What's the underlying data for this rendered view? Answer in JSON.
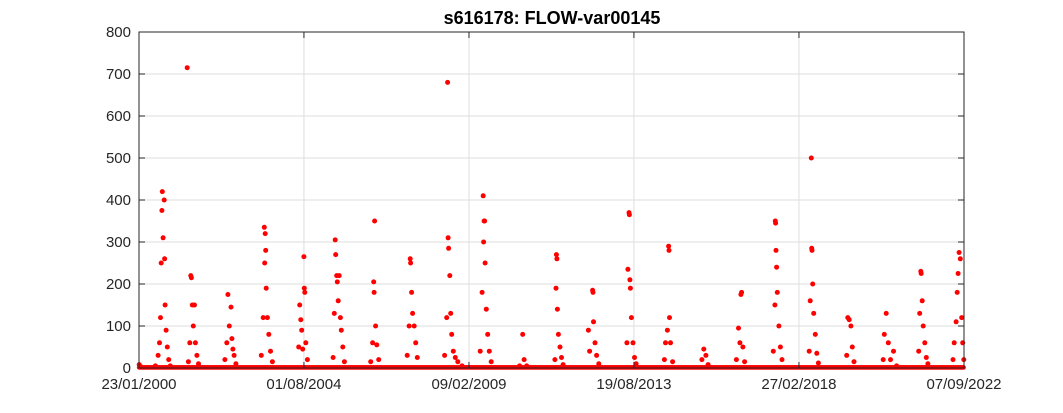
{
  "chart_data": {
    "type": "scatter",
    "title": "s616178: FLOW-var00145",
    "xlabel": "",
    "ylabel": "",
    "x_axis": {
      "type": "date",
      "min": "2000-01-23",
      "max": "2022-09-07"
    },
    "ylim": [
      0,
      800
    ],
    "yticks": [
      0,
      100,
      200,
      300,
      400,
      500,
      600,
      700,
      800
    ],
    "xticks": [
      {
        "date": "2000-01-23",
        "label": "23/01/2000"
      },
      {
        "date": "2004-08-01",
        "label": "01/08/2004"
      },
      {
        "date": "2009-02-09",
        "label": "09/02/2009"
      },
      {
        "date": "2013-08-19",
        "label": "19/08/2013"
      },
      {
        "date": "2018-02-27",
        "label": "27/02/2018"
      },
      {
        "date": "2022-09-07",
        "label": "07/09/2022"
      }
    ],
    "grid": true,
    "marker_color": "#ff0000",
    "series": [
      {
        "points": [
          [
            "2000-01-25",
            8
          ],
          [
            "2000-02-10",
            3
          ],
          [
            "2000-07-05",
            5
          ],
          [
            "2000-08-01",
            30
          ],
          [
            "2000-08-15",
            60
          ],
          [
            "2000-08-25",
            120
          ],
          [
            "2000-09-01",
            250
          ],
          [
            "2000-09-08",
            375
          ],
          [
            "2000-09-12",
            420
          ],
          [
            "2000-09-20",
            310
          ],
          [
            "2000-10-01",
            400
          ],
          [
            "2000-10-05",
            260
          ],
          [
            "2000-10-10",
            150
          ],
          [
            "2000-10-20",
            90
          ],
          [
            "2000-11-01",
            50
          ],
          [
            "2000-11-15",
            20
          ],
          [
            "2000-12-01",
            5
          ],
          [
            "2001-05-20",
            715
          ],
          [
            "2001-06-01",
            15
          ],
          [
            "2001-06-15",
            60
          ],
          [
            "2001-06-25",
            220
          ],
          [
            "2001-07-01",
            215
          ],
          [
            "2001-07-10",
            150
          ],
          [
            "2001-07-20",
            100
          ],
          [
            "2001-08-01",
            150
          ],
          [
            "2001-08-10",
            60
          ],
          [
            "2001-08-25",
            30
          ],
          [
            "2001-09-10",
            10
          ],
          [
            "2002-06-01",
            20
          ],
          [
            "2002-06-20",
            60
          ],
          [
            "2002-07-01",
            175
          ],
          [
            "2002-07-15",
            100
          ],
          [
            "2002-08-01",
            145
          ],
          [
            "2002-08-10",
            70
          ],
          [
            "2002-08-20",
            45
          ],
          [
            "2002-09-01",
            30
          ],
          [
            "2002-09-20",
            10
          ],
          [
            "2003-06-01",
            30
          ],
          [
            "2003-06-20",
            120
          ],
          [
            "2003-07-01",
            335
          ],
          [
            "2003-07-05",
            250
          ],
          [
            "2003-07-10",
            320
          ],
          [
            "2003-07-15",
            280
          ],
          [
            "2003-07-20",
            190
          ],
          [
            "2003-08-01",
            120
          ],
          [
            "2003-08-15",
            80
          ],
          [
            "2003-09-01",
            40
          ],
          [
            "2003-09-20",
            15
          ],
          [
            "2004-06-10",
            50
          ],
          [
            "2004-06-20",
            150
          ],
          [
            "2004-07-01",
            115
          ],
          [
            "2004-07-10",
            90
          ],
          [
            "2004-07-20",
            45
          ],
          [
            "2004-08-01",
            265
          ],
          [
            "2004-08-05",
            190
          ],
          [
            "2004-08-10",
            180
          ],
          [
            "2004-08-20",
            60
          ],
          [
            "2004-09-05",
            20
          ],
          [
            "2005-05-20",
            25
          ],
          [
            "2005-06-01",
            130
          ],
          [
            "2005-06-10",
            305
          ],
          [
            "2005-06-15",
            270
          ],
          [
            "2005-06-25",
            220
          ],
          [
            "2005-07-01",
            205
          ],
          [
            "2005-07-10",
            160
          ],
          [
            "2005-07-20",
            220
          ],
          [
            "2005-08-01",
            120
          ],
          [
            "2005-08-10",
            90
          ],
          [
            "2005-08-25",
            50
          ],
          [
            "2005-09-10",
            15
          ],
          [
            "2006-06-01",
            15
          ],
          [
            "2006-06-20",
            60
          ],
          [
            "2006-07-01",
            205
          ],
          [
            "2006-07-05",
            180
          ],
          [
            "2006-07-10",
            350
          ],
          [
            "2006-07-20",
            100
          ],
          [
            "2006-08-01",
            55
          ],
          [
            "2006-08-20",
            20
          ],
          [
            "2007-06-01",
            30
          ],
          [
            "2007-06-20",
            100
          ],
          [
            "2007-07-01",
            260
          ],
          [
            "2007-07-05",
            250
          ],
          [
            "2007-07-15",
            180
          ],
          [
            "2007-07-25",
            130
          ],
          [
            "2007-08-10",
            100
          ],
          [
            "2007-08-25",
            60
          ],
          [
            "2007-09-10",
            25
          ],
          [
            "2008-06-10",
            30
          ],
          [
            "2008-07-01",
            120
          ],
          [
            "2008-07-10",
            680
          ],
          [
            "2008-07-15",
            310
          ],
          [
            "2008-07-20",
            285
          ],
          [
            "2008-08-01",
            220
          ],
          [
            "2008-08-10",
            130
          ],
          [
            "2008-08-20",
            80
          ],
          [
            "2008-09-05",
            40
          ],
          [
            "2008-09-25",
            25
          ],
          [
            "2008-10-20",
            15
          ],
          [
            "2008-12-01",
            5
          ],
          [
            "2009-06-01",
            40
          ],
          [
            "2009-06-20",
            180
          ],
          [
            "2009-07-01",
            410
          ],
          [
            "2009-07-05",
            300
          ],
          [
            "2009-07-10",
            350
          ],
          [
            "2009-07-15",
            350
          ],
          [
            "2009-07-20",
            250
          ],
          [
            "2009-08-01",
            140
          ],
          [
            "2009-08-15",
            80
          ],
          [
            "2009-09-01",
            40
          ],
          [
            "2009-09-20",
            15
          ],
          [
            "2010-07-01",
            5
          ],
          [
            "2010-08-01",
            80
          ],
          [
            "2010-08-15",
            20
          ],
          [
            "2010-09-10",
            5
          ],
          [
            "2011-06-20",
            20
          ],
          [
            "2011-07-01",
            190
          ],
          [
            "2011-07-05",
            270
          ],
          [
            "2011-07-10",
            260
          ],
          [
            "2011-07-15",
            140
          ],
          [
            "2011-07-25",
            80
          ],
          [
            "2011-08-10",
            50
          ],
          [
            "2011-08-25",
            25
          ],
          [
            "2011-09-10",
            8
          ],
          [
            "2012-05-20",
            90
          ],
          [
            "2012-06-01",
            40
          ],
          [
            "2012-07-01",
            185
          ],
          [
            "2012-07-05",
            180
          ],
          [
            "2012-07-10",
            110
          ],
          [
            "2012-07-25",
            60
          ],
          [
            "2012-08-10",
            30
          ],
          [
            "2012-09-01",
            10
          ],
          [
            "2013-06-10",
            60
          ],
          [
            "2013-06-20",
            235
          ],
          [
            "2013-07-01",
            370
          ],
          [
            "2013-07-05",
            365
          ],
          [
            "2013-07-10",
            210
          ],
          [
            "2013-07-15",
            190
          ],
          [
            "2013-07-25",
            120
          ],
          [
            "2013-08-10",
            60
          ],
          [
            "2013-08-25",
            25
          ],
          [
            "2013-09-10",
            10
          ],
          [
            "2014-06-20",
            20
          ],
          [
            "2014-07-01",
            60
          ],
          [
            "2014-07-20",
            90
          ],
          [
            "2014-08-01",
            290
          ],
          [
            "2014-08-05",
            280
          ],
          [
            "2014-08-10",
            120
          ],
          [
            "2014-08-20",
            60
          ],
          [
            "2014-09-10",
            15
          ],
          [
            "2015-07-01",
            20
          ],
          [
            "2015-07-20",
            45
          ],
          [
            "2015-08-10",
            30
          ],
          [
            "2015-09-01",
            8
          ],
          [
            "2016-06-10",
            20
          ],
          [
            "2016-07-01",
            95
          ],
          [
            "2016-07-15",
            60
          ],
          [
            "2016-07-25",
            175
          ],
          [
            "2016-08-01",
            180
          ],
          [
            "2016-08-15",
            50
          ],
          [
            "2016-09-01",
            15
          ],
          [
            "2017-06-15",
            40
          ],
          [
            "2017-07-01",
            150
          ],
          [
            "2017-07-05",
            350
          ],
          [
            "2017-07-08",
            345
          ],
          [
            "2017-07-12",
            280
          ],
          [
            "2017-07-18",
            240
          ],
          [
            "2017-07-25",
            180
          ],
          [
            "2017-08-10",
            100
          ],
          [
            "2017-08-25",
            50
          ],
          [
            "2017-09-10",
            20
          ],
          [
            "2018-06-10",
            40
          ],
          [
            "2018-06-20",
            160
          ],
          [
            "2018-07-01",
            500
          ],
          [
            "2018-07-05",
            285
          ],
          [
            "2018-07-08",
            280
          ],
          [
            "2018-07-15",
            200
          ],
          [
            "2018-07-25",
            130
          ],
          [
            "2018-08-10",
            80
          ],
          [
            "2018-08-25",
            35
          ],
          [
            "2018-09-10",
            12
          ],
          [
            "2019-06-20",
            30
          ],
          [
            "2019-07-01",
            120
          ],
          [
            "2019-07-15",
            115
          ],
          [
            "2019-08-01",
            100
          ],
          [
            "2019-08-15",
            50
          ],
          [
            "2019-09-01",
            15
          ],
          [
            "2020-06-20",
            20
          ],
          [
            "2020-07-01",
            80
          ],
          [
            "2020-07-20",
            130
          ],
          [
            "2020-08-10",
            60
          ],
          [
            "2020-09-01",
            20
          ],
          [
            "2020-10-01",
            40
          ],
          [
            "2020-11-01",
            5
          ],
          [
            "2021-06-10",
            40
          ],
          [
            "2021-06-20",
            130
          ],
          [
            "2021-07-01",
            230
          ],
          [
            "2021-07-05",
            225
          ],
          [
            "2021-07-15",
            160
          ],
          [
            "2021-07-25",
            100
          ],
          [
            "2021-08-10",
            60
          ],
          [
            "2021-08-25",
            25
          ],
          [
            "2021-09-10",
            10
          ],
          [
            "2022-05-20",
            20
          ],
          [
            "2022-06-01",
            60
          ],
          [
            "2022-06-20",
            110
          ],
          [
            "2022-07-01",
            180
          ],
          [
            "2022-07-10",
            225
          ],
          [
            "2022-07-20",
            275
          ],
          [
            "2022-08-01",
            260
          ],
          [
            "2022-08-15",
            120
          ],
          [
            "2022-08-25",
            60
          ],
          [
            "2022-09-05",
            20
          ]
        ]
      }
    ]
  }
}
